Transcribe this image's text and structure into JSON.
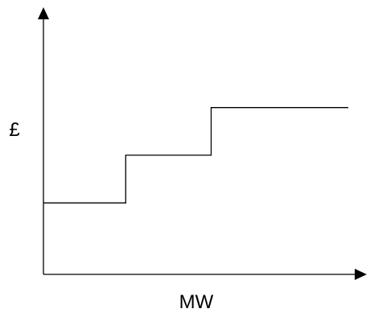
{
  "chart_data": {
    "type": "line",
    "step": true,
    "title": "",
    "xlabel": "MW",
    "ylabel": "£",
    "tick_labels_shown": false,
    "grid": false,
    "legend": "none",
    "xlim": [
      0,
      100
    ],
    "ylim": [
      0,
      100
    ],
    "series": [
      {
        "x": [
          0,
          27,
          27,
          55,
          55,
          100
        ],
        "y": [
          27,
          27,
          45,
          45,
          63,
          63
        ],
        "color": "#000000"
      }
    ]
  }
}
